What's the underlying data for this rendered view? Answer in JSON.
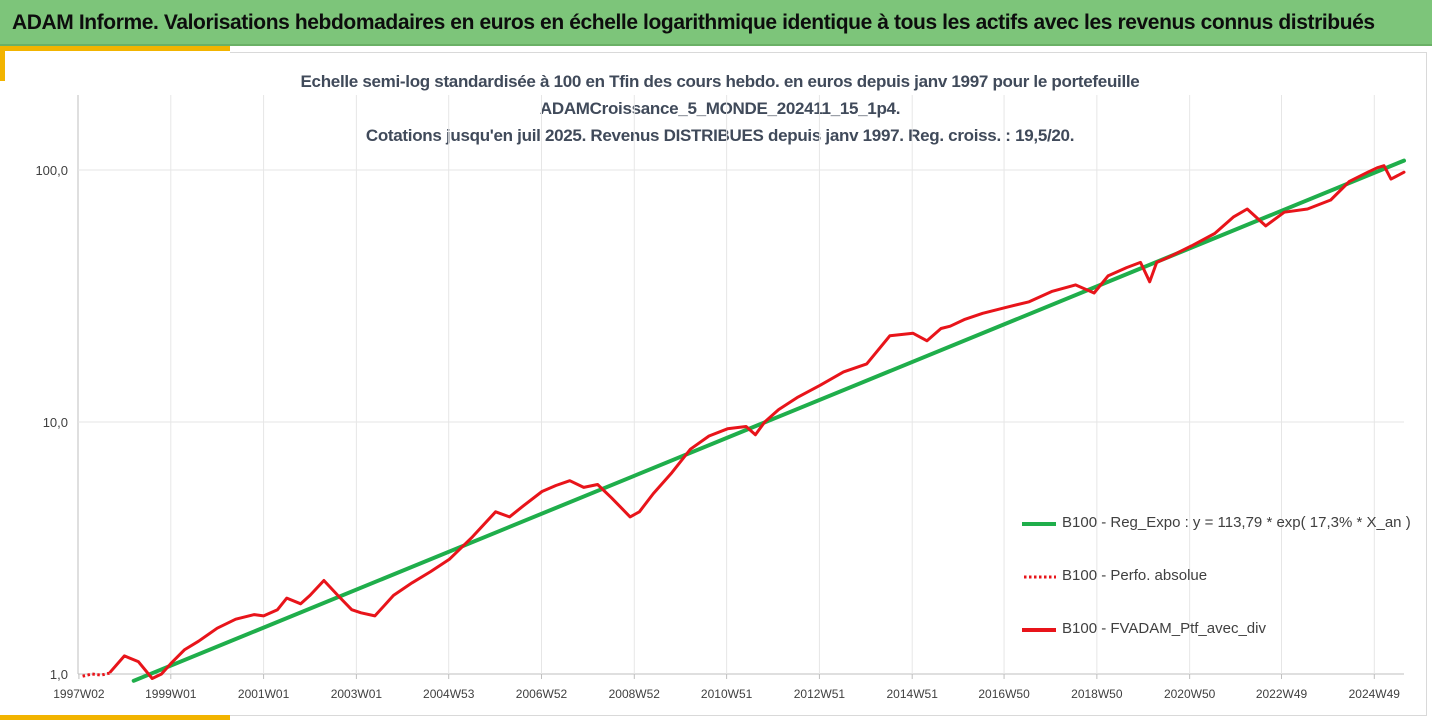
{
  "header": {
    "title": "ADAM Informe. Valorisations hebdomadaires en euros en échelle logarithmique identique à tous les actifs avec les revenus connus distribués"
  },
  "colors": {
    "banner": "#7dc57a",
    "accent": "#f2b400",
    "regression": "#1fae4b",
    "portfolio": "#e8141a"
  },
  "chart_data": {
    "type": "line",
    "title_lines": [
      "Echelle semi-log standardisée à 100 en Tfin des cours hebdo.  en euros depuis janv 1997 pour le portefeuille",
      "ADAMCroissance_5_MONDE_202411_15_1p4.",
      "Cotations  jusqu'en juil 2025. Revenus DISTRIBUES depuis janv 1997. Reg. croiss. : 19,5/20."
    ],
    "yscale": "log",
    "ylim": [
      1,
      100
    ],
    "yticks": [
      1,
      10,
      100
    ],
    "ytick_labels": [
      "1,0",
      "10,0",
      "100,0"
    ],
    "xlim": [
      1997.0,
      2025.58
    ],
    "xticks": [
      1997.02,
      1999.0,
      2001.0,
      2003.0,
      2004.99,
      2006.99,
      2008.99,
      2010.98,
      2012.98,
      2014.98,
      2016.96,
      2018.96,
      2020.96,
      2022.94,
      2024.94
    ],
    "xtick_labels": [
      "1997W02",
      "1999W01",
      "2001W01",
      "2003W01",
      "2004W53",
      "2006W52",
      "2008W52",
      "2010W51",
      "2012W51",
      "2014W51",
      "2016W50",
      "2018W50",
      "2020W50",
      "2022W49",
      "2024W49"
    ],
    "grid": "vertical",
    "legend_position": "right",
    "series": [
      {
        "name": "B100 - Reg_Expo : y = 113,79 * exp( 17,3% *  X_an )",
        "style": "solid",
        "x": [
          1998.2,
          2025.58
        ],
        "y": [
          0.94,
          109.0
        ]
      },
      {
        "name": "B100 - Perfo. absolue",
        "style": "dotted",
        "x": [
          1997.1,
          1997.3,
          1997.5,
          1997.7
        ],
        "y": [
          0.98,
          1.0,
          0.99,
          1.01
        ]
      },
      {
        "name": "B100 - FVADAM_Ptf_avec_div",
        "style": "solid",
        "x": [
          1997.7,
          1998.0,
          1998.3,
          1998.6,
          1998.8,
          1999.0,
          1999.3,
          1999.6,
          2000.0,
          2000.4,
          2000.8,
          2001.0,
          2001.3,
          2001.5,
          2001.8,
          2002.0,
          2002.3,
          2002.6,
          2002.9,
          2003.1,
          2003.4,
          2003.8,
          2004.2,
          2004.6,
          2005.0,
          2005.5,
          2006.0,
          2006.3,
          2006.6,
          2007.0,
          2007.3,
          2007.6,
          2007.9,
          2008.2,
          2008.5,
          2008.9,
          2009.1,
          2009.4,
          2009.8,
          2010.2,
          2010.6,
          2011.0,
          2011.4,
          2011.6,
          2011.8,
          2012.1,
          2012.5,
          2013.0,
          2013.5,
          2014.0,
          2014.5,
          2015.0,
          2015.3,
          2015.6,
          2015.8,
          2016.1,
          2016.5,
          2017.0,
          2017.5,
          2018.0,
          2018.5,
          2018.9,
          2019.2,
          2019.6,
          2019.9,
          2020.1,
          2020.25,
          2020.5,
          2021.0,
          2021.5,
          2021.9,
          2022.2,
          2022.6,
          2023.0,
          2023.5,
          2024.0,
          2024.4,
          2024.8,
          2025.0,
          2025.15,
          2025.3,
          2025.58
        ],
        "y": [
          1.02,
          1.18,
          1.12,
          0.96,
          1.0,
          1.1,
          1.25,
          1.35,
          1.52,
          1.65,
          1.72,
          1.7,
          1.8,
          2.0,
          1.9,
          2.05,
          2.35,
          2.05,
          1.8,
          1.75,
          1.7,
          2.05,
          2.3,
          2.55,
          2.85,
          3.5,
          4.4,
          4.2,
          4.65,
          5.3,
          5.6,
          5.85,
          5.5,
          5.65,
          5.0,
          4.2,
          4.4,
          5.2,
          6.3,
          7.8,
          8.8,
          9.4,
          9.6,
          8.9,
          10.0,
          11.2,
          12.5,
          14.0,
          15.8,
          17.0,
          22.0,
          22.5,
          21.0,
          23.5,
          24.0,
          25.5,
          27.0,
          28.5,
          30.0,
          33.0,
          35.0,
          32.5,
          38.0,
          41.0,
          43.0,
          36.0,
          43.0,
          45.0,
          50.0,
          56.0,
          65.0,
          70.0,
          60.0,
          68.0,
          70.0,
          76.0,
          90.0,
          98.0,
          102.0,
          104.0,
          92.0,
          98.0
        ]
      }
    ]
  }
}
